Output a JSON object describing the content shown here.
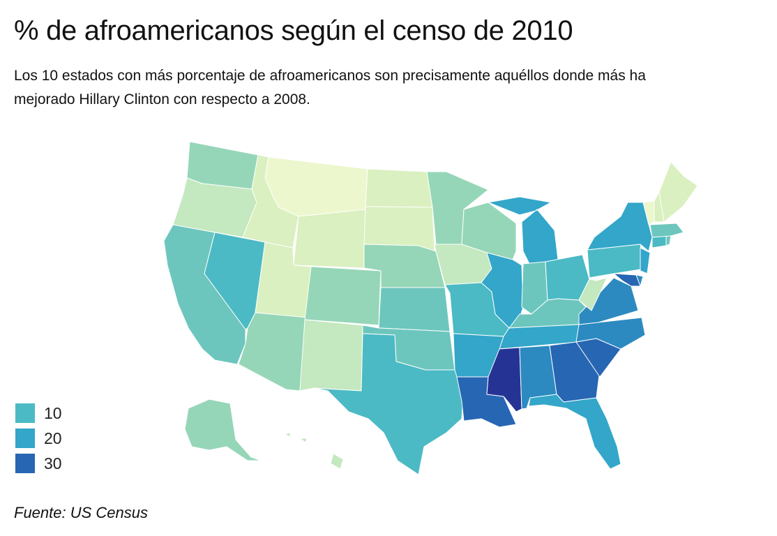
{
  "title": "% de afroamericanos según el censo de 2010",
  "subtitle": "Los 10 estados con más porcentaje de afroamericanos son precisamente aquéllos donde más ha mejorado Hillary Clinton con respecto a 2008.",
  "source": "Fuente: US Census",
  "colors": {
    "c0": "#ecf7cd",
    "c1": "#daf0c0",
    "c2": "#c4e8bf",
    "c3": "#96d6b8",
    "c4": "#6dc6bd",
    "c5": "#4bbac4",
    "c6": "#33a6c9",
    "c7": "#2c8ac0",
    "c8": "#2766b3",
    "c9": "#253494"
  },
  "legend": [
    {
      "label": "10",
      "color": "#4bbac4"
    },
    {
      "label": "20",
      "color": "#33a6c9"
    },
    {
      "label": "30",
      "color": "#2766b3"
    }
  ],
  "states": [
    {
      "id": "WA",
      "cls": "c3"
    },
    {
      "id": "OR",
      "cls": "c2"
    },
    {
      "id": "CA",
      "cls": "c4"
    },
    {
      "id": "NV",
      "cls": "c5"
    },
    {
      "id": "ID",
      "cls": "c1"
    },
    {
      "id": "MT",
      "cls": "c0"
    },
    {
      "id": "WY",
      "cls": "c1"
    },
    {
      "id": "UT",
      "cls": "c1"
    },
    {
      "id": "AZ",
      "cls": "c3"
    },
    {
      "id": "CO",
      "cls": "c3"
    },
    {
      "id": "NM",
      "cls": "c2"
    },
    {
      "id": "ND",
      "cls": "c1"
    },
    {
      "id": "SD",
      "cls": "c1"
    },
    {
      "id": "NE",
      "cls": "c3"
    },
    {
      "id": "KS",
      "cls": "c4"
    },
    {
      "id": "OK",
      "cls": "c4"
    },
    {
      "id": "TX",
      "cls": "c5"
    },
    {
      "id": "MN",
      "cls": "c3"
    },
    {
      "id": "IA",
      "cls": "c2"
    },
    {
      "id": "MO",
      "cls": "c5"
    },
    {
      "id": "AR",
      "cls": "c6"
    },
    {
      "id": "LA",
      "cls": "c8"
    },
    {
      "id": "WI",
      "cls": "c3"
    },
    {
      "id": "IL",
      "cls": "c6"
    },
    {
      "id": "MI",
      "cls": "c6"
    },
    {
      "id": "IN",
      "cls": "c4"
    },
    {
      "id": "OH",
      "cls": "c5"
    },
    {
      "id": "KY",
      "cls": "c4"
    },
    {
      "id": "TN",
      "cls": "c6"
    },
    {
      "id": "MS",
      "cls": "c9"
    },
    {
      "id": "AL",
      "cls": "c7"
    },
    {
      "id": "GA",
      "cls": "c8"
    },
    {
      "id": "FL",
      "cls": "c6"
    },
    {
      "id": "SC",
      "cls": "c8"
    },
    {
      "id": "NC",
      "cls": "c7"
    },
    {
      "id": "VA",
      "cls": "c7"
    },
    {
      "id": "WV",
      "cls": "c2"
    },
    {
      "id": "PA",
      "cls": "c5"
    },
    {
      "id": "NY",
      "cls": "c6"
    },
    {
      "id": "NJ",
      "cls": "c6"
    },
    {
      "id": "DE",
      "cls": "c7"
    },
    {
      "id": "MD",
      "cls": "c8"
    },
    {
      "id": "CT",
      "cls": "c5"
    },
    {
      "id": "RI",
      "cls": "c4"
    },
    {
      "id": "MA",
      "cls": "c4"
    },
    {
      "id": "VT",
      "cls": "c0"
    },
    {
      "id": "NH",
      "cls": "c1"
    },
    {
      "id": "ME",
      "cls": "c1"
    },
    {
      "id": "AK",
      "cls": "c3"
    },
    {
      "id": "HI",
      "cls": "c2"
    }
  ]
}
